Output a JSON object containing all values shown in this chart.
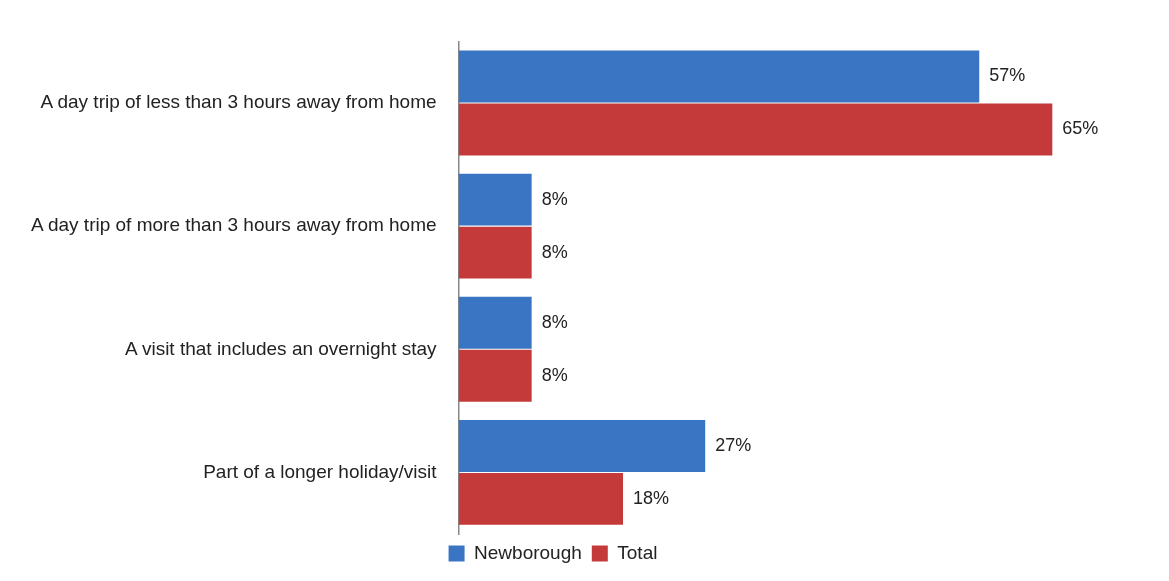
{
  "chart_data": {
    "type": "bar",
    "orientation": "horizontal",
    "categories": [
      "A day trip of less than 3 hours away from home",
      "A day trip of more than 3 hours away from home",
      "A visit that includes an overnight stay",
      "Part of a longer holiday/visit"
    ],
    "series": [
      {
        "name": "Newborough",
        "color": "#3a75c4",
        "values": [
          57,
          8,
          8,
          27
        ],
        "value_labels": [
          "57%",
          "8%",
          "8%",
          "27%"
        ]
      },
      {
        "name": "Total",
        "color": "#c43a3a",
        "values": [
          65,
          8,
          8,
          18
        ],
        "value_labels": [
          "65%",
          "8%",
          "8%",
          "18%"
        ]
      }
    ],
    "tick_labels": "y",
    "grid": false,
    "legend": "bottom"
  }
}
